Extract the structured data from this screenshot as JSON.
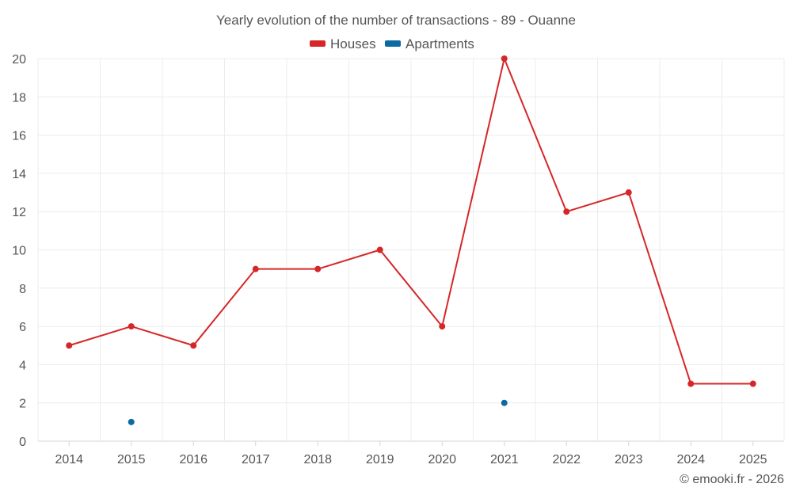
{
  "chart_data": {
    "type": "line",
    "title": "Yearly evolution of the number of transactions - 89 - Ouanne",
    "categories": [
      "2014",
      "2015",
      "2016",
      "2017",
      "2018",
      "2019",
      "2020",
      "2021",
      "2022",
      "2023",
      "2024",
      "2025"
    ],
    "series": [
      {
        "name": "Houses",
        "color": "#d62728",
        "values": [
          5,
          6,
          5,
          9,
          9,
          10,
          6,
          20,
          12,
          13,
          3,
          3
        ]
      },
      {
        "name": "Apartments",
        "color": "#0b6aa2",
        "values": [
          null,
          1,
          null,
          null,
          null,
          null,
          null,
          2,
          null,
          null,
          null,
          null
        ]
      }
    ],
    "ylim": [
      0,
      20
    ],
    "yticks": [
      0,
      2,
      4,
      6,
      8,
      10,
      12,
      14,
      16,
      18,
      20
    ],
    "xlabel": "",
    "ylabel": "",
    "grid": true,
    "legend": "top-center"
  },
  "credit": "© emooki.fr - 2026"
}
